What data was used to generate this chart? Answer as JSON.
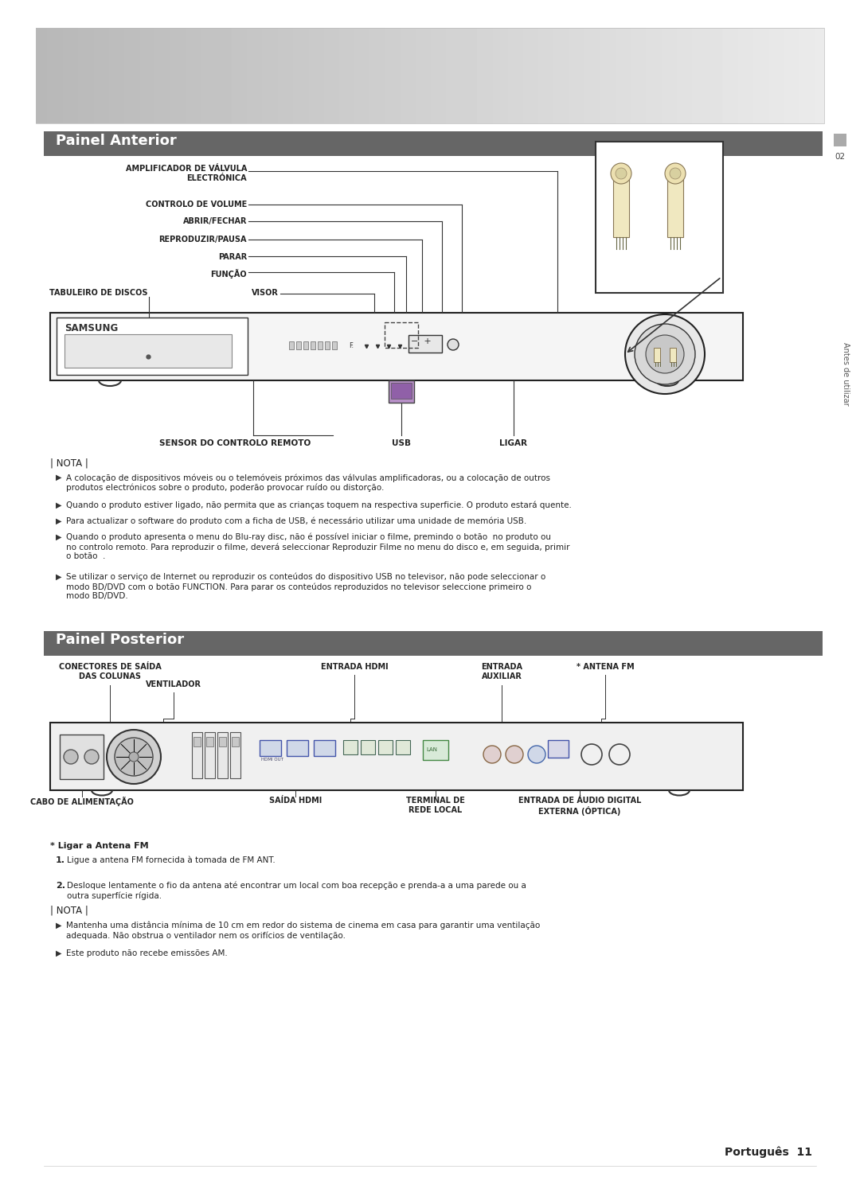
{
  "bg_color": "#ffffff",
  "painel_anterior_title": "Painel Anterior",
  "painel_posterior_title": "Painel Posterior",
  "side_text": "Antes de utilizar",
  "side_num": "02",
  "nota_text": "| NOTA |",
  "nota_bullets_anterior": [
    "A colocação de dispositivos móveis ou o telemóveis próximos das válvulas amplificadoras, ou a colocação de outros\nprodutos electrónicos sobre o produto, poderão provocar ruído ou distorção.",
    "Quando o produto estiver ligado, não permita que as crianças toquem na respectiva superficie. O produto estará quente.",
    "Para actualizar o software do produto com a ficha de USB, é necessário utilizar uma unidade de memória USB.",
    "Quando o produto apresenta o menu do Blu-ray disc, não é possível iniciar o filme, premindo o botão  no produto ou\nno controlo remoto. Para reproduzir o filme, deverá seleccionar Reproduzir Filme no menu do disco e, em seguida, primir\no botão  .",
    "Se utilizar o serviço de Internet ou reproduzir os conteúdos do dispositivo USB no televisor, não pode seleccionar o\nmodo BD/DVD com o botão FUNCTION. Para parar os conteúdos reproduzidos no televisor seleccione primeiro o\nmodo BD/DVD."
  ],
  "antenna_note_title": "* Ligar a Antena FM",
  "antenna_steps": [
    "Ligue a antena FM fornecida à tomada de FM ANT.",
    "Desloque lentamente o fio da antena até encontrar um local com boa recepção e prenda-a a uma parede ou a\noutra superfície rígida."
  ],
  "nota_bullets_posterior": [
    "Mantenha uma distância mínima de 10 cm em redor do sistema de cinema em casa para garantir uma ventilação\nadequada. Não obstrua o ventilador nem os orifícios de ventilação.",
    "Este produto não recebe emissões AM."
  ],
  "footer_text": "Português  11"
}
